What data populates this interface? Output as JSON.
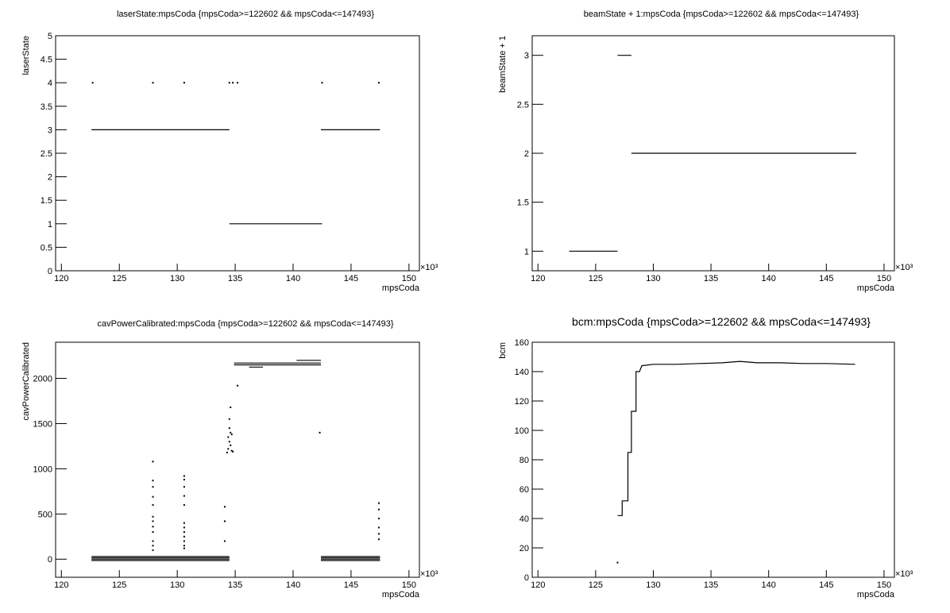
{
  "chart_data": [
    {
      "type": "scatter",
      "title": "laserState:mpsCoda {mpsCoda>=122602 && mpsCoda<=147493}",
      "x_label": "mpsCoda",
      "y_label": "laserState",
      "x_multiplier": "×10³",
      "xlim": [
        119.5,
        150.9
      ],
      "ylim": [
        0,
        5
      ],
      "xticks": [
        120,
        125,
        130,
        135,
        140,
        145,
        150
      ],
      "yticks": [
        0,
        0.5,
        1,
        1.5,
        2,
        2.5,
        3,
        3.5,
        4,
        4.5,
        5
      ],
      "series": [
        {
          "style": "line",
          "color": "#000000",
          "x": [
            122.6,
            134.5,
            null,
            134.5,
            142.5,
            null,
            142.4,
            147.5
          ],
          "values": [
            3,
            3,
            null,
            1,
            1,
            null,
            3,
            3
          ]
        },
        {
          "style": "points",
          "color": "#000000",
          "x": [
            122.7,
            127.9,
            130.6,
            134.5,
            134.8,
            135.2,
            142.5,
            147.4
          ],
          "values": [
            4,
            4,
            4,
            4,
            4,
            4,
            4,
            4
          ]
        }
      ]
    },
    {
      "type": "scatter",
      "title": "beamState + 1:mpsCoda {mpsCoda>=122602 && mpsCoda<=147493}",
      "x_label": "mpsCoda",
      "y_label": "beamState + 1",
      "x_multiplier": "×10³",
      "xlim": [
        119.5,
        150.9
      ],
      "ylim": [
        0.8,
        3.2
      ],
      "xticks": [
        120,
        125,
        130,
        135,
        140,
        145,
        150
      ],
      "yticks": [
        1,
        1.5,
        2,
        2.5,
        3
      ],
      "series": [
        {
          "style": "line",
          "color": "#000000",
          "x": [
            122.7,
            126.9,
            null,
            126.9,
            128.1,
            null,
            128.1,
            147.6
          ],
          "values": [
            1,
            1,
            null,
            3,
            3,
            null,
            2,
            2
          ]
        }
      ]
    },
    {
      "type": "scatter",
      "title": "cavPowerCalibrated:mpsCoda {mpsCoda>=122602 && mpsCoda<=147493}",
      "x_label": "mpsCoda",
      "y_label": "cavPowerCalibrated",
      "x_multiplier": "×10³",
      "xlim": [
        119.5,
        150.9
      ],
      "ylim": [
        -200,
        2400
      ],
      "xticks": [
        120,
        125,
        130,
        135,
        140,
        145,
        150
      ],
      "yticks": [
        0,
        500,
        1000,
        1500,
        2000
      ],
      "series": [
        {
          "style": "line",
          "color": "#000000",
          "x": [
            122.6,
            134.5,
            null,
            122.6,
            134.5,
            null,
            122.6,
            134.5,
            null,
            122.6,
            134.5,
            null,
            142.4,
            147.5,
            null,
            142.4,
            147.5,
            null,
            142.4,
            147.5,
            null,
            142.4,
            147.5,
            null,
            134.9,
            142.4,
            null,
            134.9,
            142.4,
            null,
            140.3,
            142.4,
            null,
            136.2,
            137.4
          ],
          "values": [
            30,
            30,
            null,
            15,
            15,
            null,
            0,
            0,
            null,
            -15,
            -15,
            null,
            30,
            30,
            null,
            15,
            15,
            null,
            0,
            0,
            null,
            -15,
            -15,
            null,
            2170,
            2170,
            null,
            2150,
            2150,
            null,
            2200,
            2200,
            null,
            2125,
            2125
          ]
        },
        {
          "style": "points",
          "color": "#000000",
          "x": [
            127.9,
            127.9,
            127.9,
            127.9,
            127.9,
            127.9,
            127.9,
            127.9,
            127.9,
            127.9,
            127.9,
            127.9,
            130.6,
            130.6,
            130.6,
            130.6,
            130.6,
            130.6,
            130.6,
            130.6,
            130.6,
            130.6,
            130.6,
            130.6,
            134.3,
            134.4,
            134.5,
            134.6,
            134.7,
            134.8,
            134.4,
            134.6,
            134.5,
            134.7,
            134.5,
            134.6,
            135.2,
            142.3,
            134.1,
            134.1,
            134.1,
            147.4,
            147.4,
            147.4,
            147.4,
            147.4,
            147.4
          ],
          "values": [
            1080,
            870,
            800,
            690,
            600,
            470,
            420,
            360,
            300,
            200,
            150,
            100,
            920,
            880,
            800,
            700,
            600,
            400,
            350,
            300,
            250,
            200,
            150,
            120,
            1180,
            1220,
            1300,
            1260,
            1200,
            1190,
            1350,
            1400,
            1450,
            1380,
            1550,
            1680,
            1920,
            1400,
            580,
            420,
            200,
            620,
            550,
            450,
            350,
            280,
            220
          ]
        }
      ]
    },
    {
      "type": "scatter",
      "title": "bcm:mpsCoda {mpsCoda>=122602 && mpsCoda<=147493}",
      "x_label": "mpsCoda",
      "y_label": "bcm",
      "x_multiplier": "×10³",
      "xlim": [
        119.5,
        150.9
      ],
      "ylim": [
        0,
        160
      ],
      "xticks": [
        120,
        125,
        130,
        135,
        140,
        145,
        150
      ],
      "yticks": [
        0,
        20,
        40,
        60,
        80,
        100,
        120,
        140,
        160
      ],
      "series": [
        {
          "style": "line",
          "color": "#000000",
          "x": [
            126.9,
            127.3,
            127.3,
            127.8,
            127.8,
            128.1,
            128.1,
            128.5,
            128.5,
            128.8,
            129,
            130,
            132,
            134,
            136,
            137.5,
            139,
            141,
            143,
            145,
            147.5
          ],
          "values": [
            42,
            42,
            52,
            52,
            85,
            85,
            113,
            113,
            140,
            140,
            144,
            145,
            145,
            145.5,
            146,
            147,
            146,
            146,
            145.5,
            145.5,
            145
          ]
        },
        {
          "style": "points",
          "color": "#000000",
          "x": [
            126.9
          ],
          "values": [
            10
          ]
        }
      ]
    }
  ]
}
